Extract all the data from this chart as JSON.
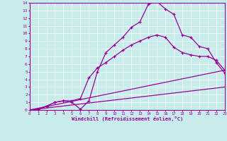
{
  "title": "",
  "xlabel": "Windchill (Refroidissement éolien,°C)",
  "ylabel": "",
  "bg_color": "#c8ecec",
  "grid_color": "#b0d8d8",
  "line_color": "#990099",
  "xlim": [
    0,
    23
  ],
  "ylim": [
    0,
    14
  ],
  "xticks": [
    0,
    1,
    2,
    3,
    4,
    5,
    6,
    7,
    8,
    9,
    10,
    11,
    12,
    13,
    14,
    15,
    16,
    17,
    18,
    19,
    20,
    21,
    22,
    23
  ],
  "yticks": [
    0,
    1,
    2,
    3,
    4,
    5,
    6,
    7,
    8,
    9,
    10,
    11,
    12,
    13,
    14
  ],
  "curve1_x": [
    0,
    1,
    2,
    3,
    4,
    5,
    6,
    7,
    8,
    9,
    10,
    11,
    12,
    13,
    14,
    15,
    16,
    17,
    18,
    19,
    20,
    21,
    22,
    23
  ],
  "curve1_y": [
    0,
    0.1,
    0.5,
    1.0,
    1.2,
    1.0,
    0.1,
    1.2,
    5.0,
    7.5,
    8.5,
    9.5,
    10.8,
    11.5,
    13.8,
    14.2,
    13.2,
    12.5,
    9.8,
    9.5,
    8.3,
    8.0,
    6.2,
    4.8
  ],
  "curve2_x": [
    0,
    1,
    2,
    3,
    4,
    5,
    6,
    7,
    8,
    9,
    10,
    11,
    12,
    13,
    14,
    15,
    16,
    17,
    18,
    19,
    20,
    21,
    22,
    23
  ],
  "curve2_y": [
    0,
    0.1,
    0.5,
    1.0,
    1.2,
    1.2,
    1.5,
    4.2,
    5.5,
    6.2,
    7.0,
    7.8,
    8.5,
    9.0,
    9.5,
    9.8,
    9.5,
    8.2,
    7.5,
    7.2,
    7.0,
    7.0,
    6.5,
    5.2
  ],
  "curve3_x": [
    0,
    23
  ],
  "curve3_y": [
    0,
    5.2
  ],
  "curve4_x": [
    0,
    23
  ],
  "curve4_y": [
    0,
    3.0
  ]
}
